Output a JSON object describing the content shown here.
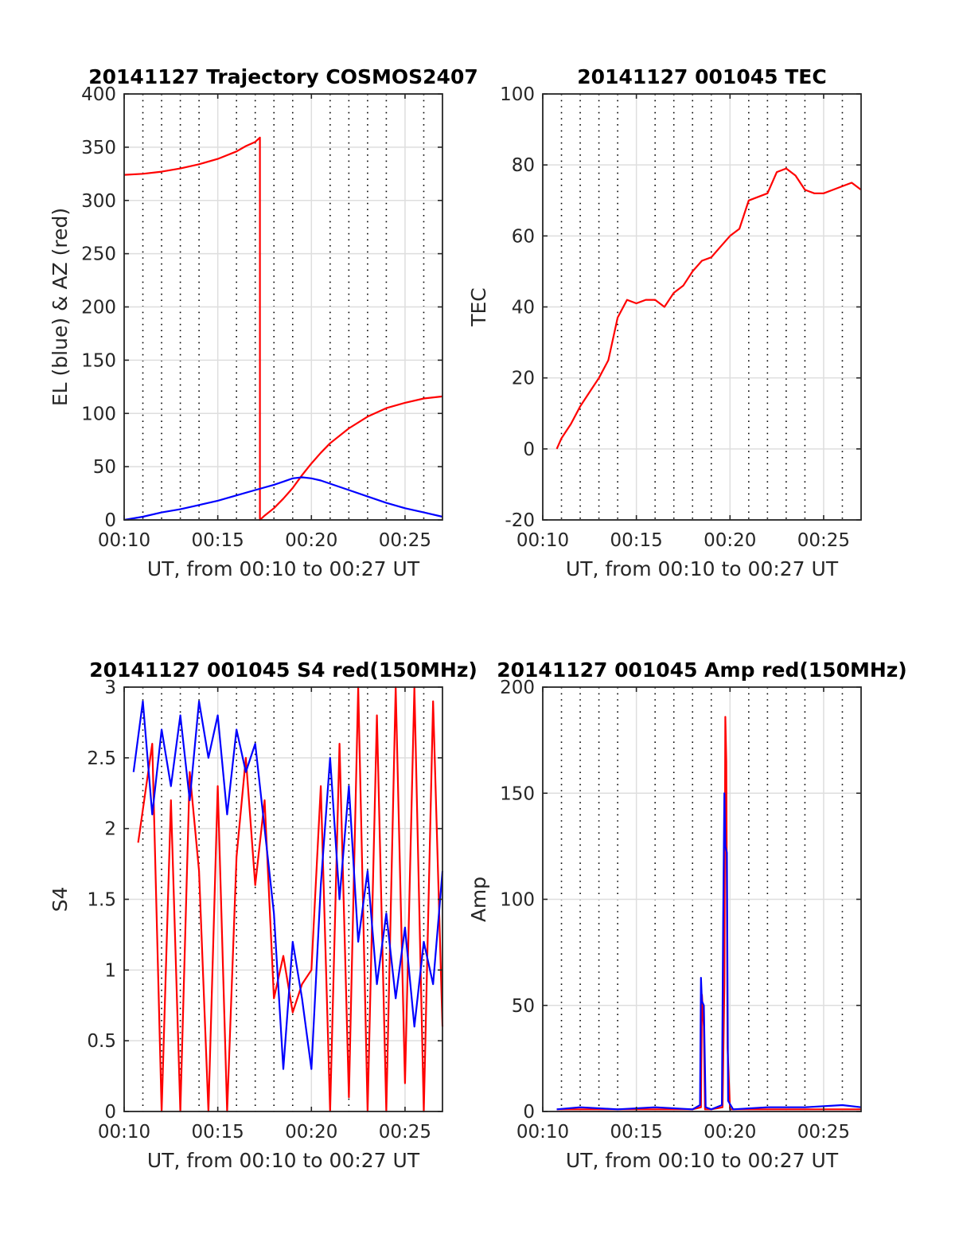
{
  "chart_data": [
    {
      "type": "line",
      "title": "20141127 Trajectory COSMOS2407",
      "xlabel": "UT, from 00:10 to 00:27 UT",
      "ylabel": "EL (blue) & AZ (red)",
      "xlim": [
        "00:10:00",
        "00:27:00"
      ],
      "ylim": [
        0,
        400
      ],
      "xticks": [
        "00:10",
        "00:15",
        "00:20",
        "00:25"
      ],
      "yticks": [
        "0",
        "50",
        "100",
        "150",
        "200",
        "250",
        "300",
        "350",
        "400"
      ],
      "grid": true,
      "minor_x_grid": "dotted, 1-minute",
      "colors": {
        "EL": "#0000ff",
        "AZ": "#ff0000"
      },
      "series": [
        {
          "color": "#ff0000",
          "x": [
            "00:10:00",
            "00:11:00",
            "00:12:00",
            "00:13:00",
            "00:14:00",
            "00:15:00",
            "00:16:00",
            "00:16:30",
            "00:17:00",
            "00:17:15",
            "00:17:15",
            "00:17:30",
            "00:18:00",
            "00:18:30",
            "00:19:00",
            "00:19:30",
            "00:20:00",
            "00:20:30",
            "00:21:00",
            "00:22:00",
            "00:23:00",
            "00:24:00",
            "00:25:00",
            "00:26:00",
            "00:27:00"
          ],
          "values": [
            324,
            325,
            327,
            330,
            334,
            339,
            346,
            351,
            355,
            359,
            0,
            4,
            11,
            20,
            30,
            42,
            53,
            63,
            72,
            86,
            97,
            105,
            110,
            114,
            116
          ]
        },
        {
          "color": "#0000ff",
          "x": [
            "00:10:00",
            "00:11:00",
            "00:12:00",
            "00:13:00",
            "00:14:00",
            "00:15:00",
            "00:16:00",
            "00:17:00",
            "00:18:00",
            "00:18:30",
            "00:19:00",
            "00:19:30",
            "00:20:00",
            "00:20:30",
            "00:21:00",
            "00:22:00",
            "00:23:00",
            "00:24:00",
            "00:25:00",
            "00:26:00",
            "00:27:00"
          ],
          "values": [
            0,
            3,
            7,
            10,
            14,
            18,
            23,
            28,
            33,
            36,
            39,
            40,
            39,
            37,
            34,
            28,
            22,
            16,
            11,
            7,
            3
          ]
        }
      ]
    },
    {
      "type": "line",
      "title": "20141127 001045 TEC",
      "xlabel": "UT, from 00:10 to 00:27 UT",
      "ylabel": "TEC",
      "xlim": [
        "00:10:00",
        "00:27:00"
      ],
      "ylim": [
        -20,
        100
      ],
      "xticks": [
        "00:10",
        "00:15",
        "00:20",
        "00:25"
      ],
      "yticks": [
        "-20",
        "0",
        "20",
        "40",
        "60",
        "80",
        "100"
      ],
      "grid": true,
      "minor_x_grid": "dotted, 1-minute",
      "series": [
        {
          "color": "#ff0000",
          "x": [
            "00:10:45",
            "00:11:00",
            "00:11:30",
            "00:12:00",
            "00:12:30",
            "00:13:00",
            "00:13:30",
            "00:14:00",
            "00:14:30",
            "00:15:00",
            "00:15:30",
            "00:16:00",
            "00:16:30",
            "00:17:00",
            "00:17:30",
            "00:18:00",
            "00:18:30",
            "00:19:00",
            "00:19:30",
            "00:20:00",
            "00:20:30",
            "00:21:00",
            "00:21:30",
            "00:22:00",
            "00:22:30",
            "00:23:00",
            "00:23:30",
            "00:24:00",
            "00:24:30",
            "00:25:00",
            "00:25:30",
            "00:26:00",
            "00:26:30",
            "00:27:00"
          ],
          "values": [
            0,
            3,
            7,
            12,
            16,
            20,
            25,
            37,
            42,
            41,
            42,
            42,
            40,
            44,
            46,
            50,
            53,
            54,
            57,
            60,
            62,
            70,
            71,
            72,
            78,
            79,
            77,
            73,
            72,
            72,
            73,
            74,
            75,
            73
          ]
        }
      ]
    },
    {
      "type": "line",
      "title": "20141127 001045 S4 red(150MHz)",
      "xlabel": "UT, from 00:10 to 00:27 UT",
      "ylabel": "S4",
      "xlim": [
        "00:10:00",
        "00:27:00"
      ],
      "ylim": [
        0,
        3
      ],
      "xticks": [
        "00:10",
        "00:15",
        "00:20",
        "00:25"
      ],
      "yticks": [
        "0",
        "0.5",
        "1",
        "1.5",
        "2",
        "2.5",
        "3"
      ],
      "grid": true,
      "minor_x_grid": "dotted, 1-minute",
      "series": [
        {
          "color": "#ff0000",
          "x": [
            "00:10:45",
            "00:11:30",
            "00:12:00",
            "00:12:30",
            "00:13:00",
            "00:13:30",
            "00:14:00",
            "00:14:30",
            "00:15:00",
            "00:15:30",
            "00:16:00",
            "00:16:30",
            "00:17:00",
            "00:17:30",
            "00:18:00",
            "00:18:30",
            "00:19:00",
            "00:19:30",
            "00:20:00",
            "00:20:30",
            "00:21:00",
            "00:21:30",
            "00:22:00",
            "00:22:30",
            "00:23:00",
            "00:23:30",
            "00:24:00",
            "00:24:30",
            "00:25:00",
            "00:25:30",
            "00:26:00",
            "00:26:30",
            "00:27:00"
          ],
          "values": [
            1.9,
            2.6,
            0,
            2.2,
            0,
            2.4,
            1.7,
            0,
            2.3,
            0,
            1.8,
            2.5,
            1.6,
            2.2,
            0.8,
            1.1,
            0.7,
            0.9,
            1.0,
            2.3,
            0,
            2.6,
            0.1,
            3.0,
            0,
            2.8,
            0,
            3.0,
            0.2,
            3.0,
            0,
            2.9,
            0.6
          ]
        },
        {
          "color": "#0000ff",
          "x": [
            "00:10:30",
            "00:11:00",
            "00:11:30",
            "00:12:00",
            "00:12:30",
            "00:13:00",
            "00:13:30",
            "00:14:00",
            "00:14:30",
            "00:15:00",
            "00:15:30",
            "00:16:00",
            "00:16:30",
            "00:17:00",
            "00:17:30",
            "00:18:00",
            "00:18:30",
            "00:19:00",
            "00:19:30",
            "00:20:00",
            "00:20:30",
            "00:21:00",
            "00:21:30",
            "00:22:00",
            "00:22:30",
            "00:23:00",
            "00:23:30",
            "00:24:00",
            "00:24:30",
            "00:25:00",
            "00:25:30",
            "00:26:00",
            "00:26:30",
            "00:27:00"
          ],
          "values": [
            2.4,
            2.9,
            2.1,
            2.7,
            2.3,
            2.8,
            2.2,
            2.9,
            2.5,
            2.8,
            2.1,
            2.7,
            2.4,
            2.6,
            2.0,
            1.4,
            0.3,
            1.2,
            0.8,
            0.3,
            1.6,
            2.5,
            1.5,
            2.3,
            1.2,
            1.7,
            0.9,
            1.4,
            0.8,
            1.3,
            0.6,
            1.2,
            0.9,
            1.7
          ]
        }
      ]
    },
    {
      "type": "line",
      "title": "20141127 001045 Amp red(150MHz)",
      "xlabel": "UT, from 00:10 to 00:27 UT",
      "ylabel": "Amp",
      "xlim": [
        "00:10:00",
        "00:27:00"
      ],
      "ylim": [
        0,
        200
      ],
      "xticks": [
        "00:10",
        "00:15",
        "00:20",
        "00:25"
      ],
      "yticks": [
        "0",
        "50",
        "100",
        "150",
        "200"
      ],
      "grid": true,
      "minor_x_grid": "dotted, 1-minute",
      "series": [
        {
          "color": "#ff0000",
          "x": [
            "00:10:45",
            "00:18:00",
            "00:18:27",
            "00:18:30",
            "00:18:36",
            "00:18:40",
            "00:19:00",
            "00:19:36",
            "00:19:42",
            "00:19:45",
            "00:19:48",
            "00:19:52",
            "00:20:00",
            "00:27:00"
          ],
          "values": [
            1,
            1,
            2,
            55,
            40,
            1,
            1,
            2,
            60,
            186,
            165,
            30,
            1,
            1
          ]
        },
        {
          "color": "#0000ff",
          "x": [
            "00:10:45",
            "00:12:00",
            "00:14:00",
            "00:16:00",
            "00:18:00",
            "00:18:24",
            "00:18:27",
            "00:18:30",
            "00:18:36",
            "00:18:42",
            "00:19:00",
            "00:19:34",
            "00:19:38",
            "00:19:42",
            "00:19:45",
            "00:19:50",
            "00:19:54",
            "00:20:10",
            "00:22:00",
            "00:24:00",
            "00:26:00",
            "00:27:00"
          ],
          "values": [
            1,
            2,
            1,
            2,
            1,
            3,
            63,
            52,
            50,
            2,
            1,
            3,
            90,
            150,
            125,
            122,
            5,
            1,
            2,
            2,
            3,
            2
          ]
        }
      ]
    }
  ]
}
